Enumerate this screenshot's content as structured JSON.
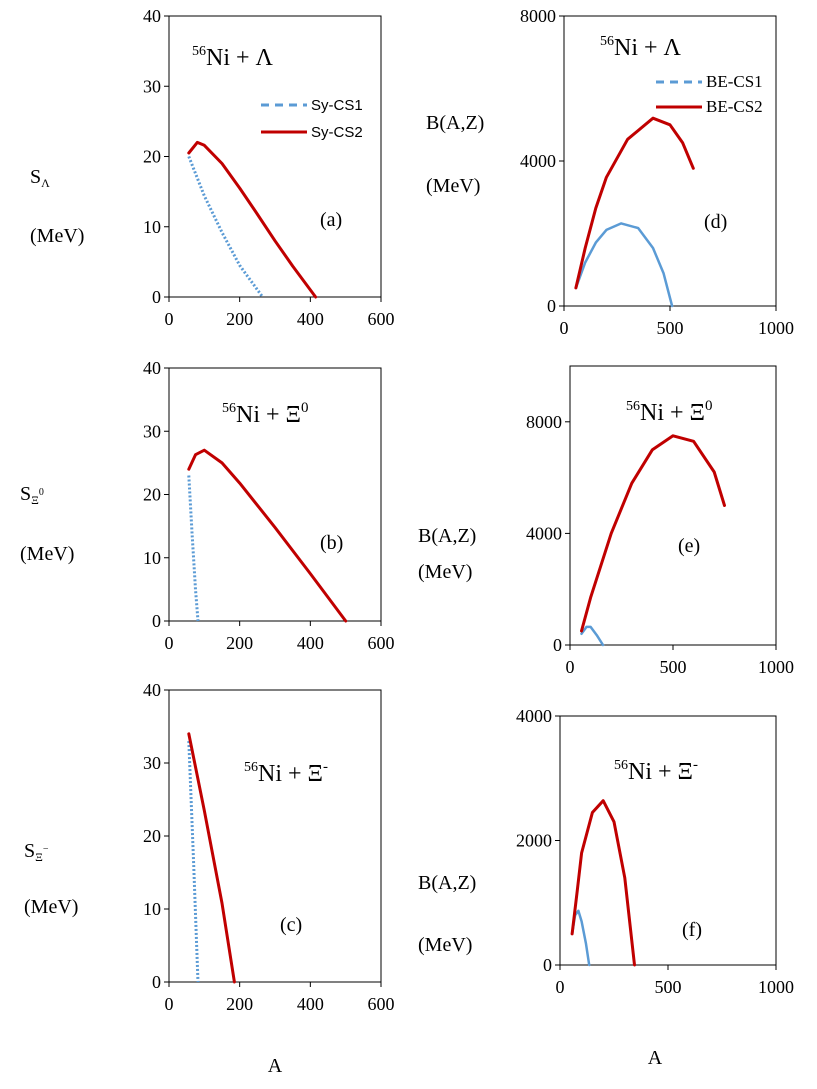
{
  "figure": {
    "x_axis_label": "A"
  },
  "chart_data": [
    {
      "id": "a",
      "type": "line",
      "panel_label": "(a)",
      "reaction": {
        "base_sup": "56",
        "base": "Ni + ",
        "particle": "Λ",
        "particle_sup": ""
      },
      "ylabel": {
        "sym": "S",
        "sub": "Λ",
        "sup": "",
        "unit": "(MeV)"
      },
      "xlim": [
        0,
        600
      ],
      "ylim": [
        0,
        40
      ],
      "xticks": [
        0,
        200,
        400,
        600
      ],
      "yticks": [
        0,
        10,
        20,
        30,
        40
      ],
      "series": [
        {
          "name": "Sy-CS1",
          "color": "#5B9BD5",
          "dash": true,
          "x": [
            56,
            100,
            150,
            200,
            265
          ],
          "y": [
            20,
            14.4,
            9.2,
            4.5,
            0
          ]
        },
        {
          "name": "Sy-CS2",
          "color": "#C00000",
          "dash": false,
          "x": [
            56,
            80,
            100,
            150,
            200,
            250,
            300,
            350,
            415
          ],
          "y": [
            20.5,
            22.0,
            21.6,
            19.0,
            15.5,
            11.8,
            8.0,
            4.4,
            0
          ]
        }
      ],
      "legend": true
    },
    {
      "id": "d",
      "type": "line",
      "panel_label": "(d)",
      "reaction": {
        "base_sup": "56",
        "base": "Ni + ",
        "particle": "Λ",
        "particle_sup": ""
      },
      "ylabel": {
        "sym": "B(A,Z)",
        "sub": "",
        "sup": "",
        "unit": "(MeV)"
      },
      "xlim": [
        0,
        1000
      ],
      "ylim": [
        0,
        8000
      ],
      "xticks": [
        0,
        500,
        1000
      ],
      "yticks": [
        0,
        4000,
        8000
      ],
      "series": [
        {
          "name": "BE-CS1",
          "color": "#5B9BD5",
          "dash": false,
          "x": [
            56,
            100,
            150,
            200,
            270,
            350,
            420,
            470,
            510
          ],
          "y": [
            500,
            1200,
            1750,
            2100,
            2280,
            2150,
            1600,
            900,
            0
          ]
        },
        {
          "name": "BE-CS2",
          "color": "#C00000",
          "dash": false,
          "x": [
            56,
            100,
            150,
            200,
            300,
            420,
            500,
            560,
            610
          ],
          "y": [
            500,
            1600,
            2700,
            3550,
            4600,
            5180,
            5000,
            4500,
            3800
          ]
        }
      ],
      "legend": true
    },
    {
      "id": "b",
      "type": "line",
      "panel_label": "(b)",
      "reaction": {
        "base_sup": "56",
        "base": "Ni + ",
        "particle": "Ξ",
        "particle_sup": "0"
      },
      "ylabel": {
        "sym": "S",
        "sub": "Ξ",
        "sup": "0",
        "unit": "(MeV)"
      },
      "xlim": [
        0,
        600
      ],
      "ylim": [
        0,
        40
      ],
      "xticks": [
        0,
        200,
        400,
        600
      ],
      "yticks": [
        0,
        10,
        20,
        30,
        40
      ],
      "series": [
        {
          "name": "Sy-CS1",
          "color": "#5B9BD5",
          "dash": true,
          "x": [
            56,
            65,
            75,
            82
          ],
          "y": [
            23,
            14,
            5,
            0
          ]
        },
        {
          "name": "Sy-CS2",
          "color": "#C00000",
          "dash": false,
          "x": [
            56,
            75,
            100,
            150,
            200,
            300,
            400,
            500
          ],
          "y": [
            24,
            26.3,
            27.0,
            25.0,
            21.8,
            14.8,
            7.5,
            0
          ]
        }
      ],
      "legend": false
    },
    {
      "id": "e",
      "type": "line",
      "panel_label": "(e)",
      "reaction": {
        "base_sup": "56",
        "base": "Ni + ",
        "particle": "Ξ",
        "particle_sup": "0"
      },
      "ylabel": {
        "sym": "B(A,Z)",
        "sub": "",
        "sup": "",
        "unit": "(MeV)"
      },
      "xlim": [
        0,
        1000
      ],
      "ylim": [
        0,
        10000
      ],
      "xticks": [
        0,
        500,
        1000
      ],
      "yticks": [
        0,
        4000,
        8000
      ],
      "series": [
        {
          "name": "BE-CS1",
          "color": "#5B9BD5",
          "dash": false,
          "x": [
            56,
            80,
            100,
            130,
            160
          ],
          "y": [
            400,
            650,
            650,
            350,
            0
          ]
        },
        {
          "name": "BE-CS2",
          "color": "#C00000",
          "dash": false,
          "x": [
            56,
            100,
            200,
            300,
            400,
            500,
            600,
            700,
            750
          ],
          "y": [
            500,
            1700,
            4000,
            5800,
            7000,
            7500,
            7300,
            6200,
            5000
          ]
        }
      ],
      "legend": false
    },
    {
      "id": "c",
      "type": "line",
      "panel_label": "(c)",
      "reaction": {
        "base_sup": "56",
        "base": "Ni + ",
        "particle": "Ξ",
        "particle_sup": "-"
      },
      "ylabel": {
        "sym": "S",
        "sub": "Ξ",
        "sup": "−",
        "unit": "(MeV)"
      },
      "xlim": [
        0,
        600
      ],
      "ylim": [
        0,
        40
      ],
      "xticks": [
        0,
        200,
        400,
        600
      ],
      "yticks": [
        0,
        10,
        20,
        30,
        40
      ],
      "series": [
        {
          "name": "Sy-CS1",
          "color": "#5B9BD5",
          "dash": true,
          "x": [
            56,
            70,
            82
          ],
          "y": [
            33,
            16,
            0
          ]
        },
        {
          "name": "Sy-CS2",
          "color": "#C00000",
          "dash": false,
          "x": [
            56,
            100,
            150,
            185
          ],
          "y": [
            34,
            23.5,
            10.8,
            0
          ]
        }
      ],
      "legend": false
    },
    {
      "id": "f",
      "type": "line",
      "panel_label": "(f)",
      "reaction": {
        "base_sup": "56",
        "base": "Ni + ",
        "particle": "Ξ",
        "particle_sup": "-"
      },
      "ylabel": {
        "sym": "B(A,Z)",
        "sub": "",
        "sup": "",
        "unit": "(MeV)"
      },
      "xlim": [
        0,
        1000
      ],
      "ylim": [
        0,
        4000
      ],
      "xticks": [
        0,
        500,
        1000
      ],
      "yticks": [
        0,
        2000,
        4000
      ],
      "series": [
        {
          "name": "BE-CS1",
          "color": "#5B9BD5",
          "dash": false,
          "x": [
            56,
            70,
            85,
            100,
            120,
            135
          ],
          "y": [
            500,
            800,
            870,
            700,
            350,
            0
          ]
        },
        {
          "name": "BE-CS2",
          "color": "#C00000",
          "dash": false,
          "x": [
            56,
            80,
            100,
            150,
            200,
            250,
            300,
            345
          ],
          "y": [
            500,
            1200,
            1800,
            2450,
            2640,
            2300,
            1400,
            0
          ]
        }
      ],
      "legend": false
    }
  ]
}
